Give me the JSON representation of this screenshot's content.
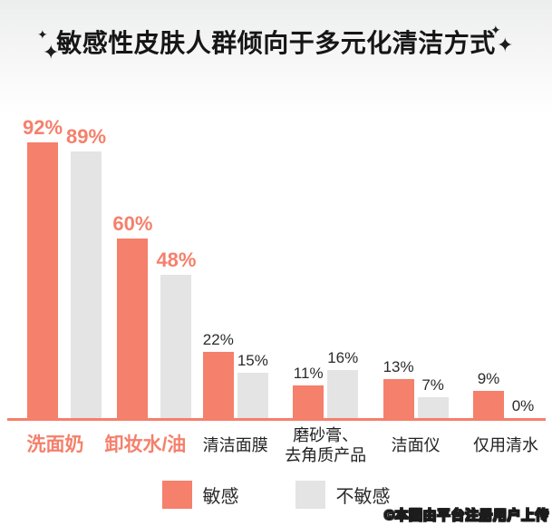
{
  "chart_data": {
    "type": "bar",
    "title": "敏感性皮肤人群倾向于多元化清洁方式",
    "categories": [
      "洗面奶",
      "卸妆水/油",
      "清洁面膜",
      "磨砂膏、\n去角质产品",
      "洁面仪",
      "仅用清水"
    ],
    "series": [
      {
        "name": "敏感",
        "values": [
          92,
          60,
          22,
          11,
          13,
          9
        ]
      },
      {
        "name": "不敏感",
        "values": [
          89,
          48,
          15,
          16,
          7,
          0
        ]
      }
    ],
    "unit": "%",
    "emphasized_categories": [
      0,
      1
    ],
    "colors": {
      "sensitive": "#F5806B",
      "insensitive": "#E4E4E4",
      "axis": "#F5806B"
    },
    "ylim": [
      0,
      100
    ],
    "grid": "off",
    "legend_position": "bottom"
  },
  "decorations": {
    "sparkle_glyph": "✦"
  },
  "watermark": {
    "text": "©本图由平台注册用户上传"
  }
}
